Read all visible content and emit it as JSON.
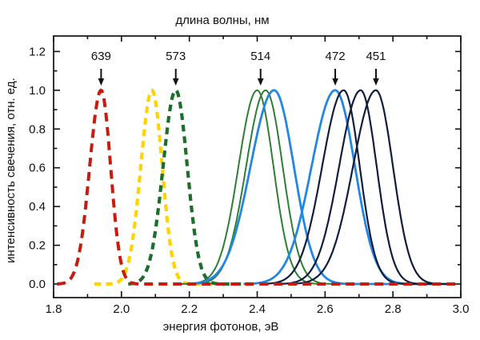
{
  "chart_data": {
    "type": "line",
    "title": "длина волны, нм",
    "top_axis_label": "длина волны, нм",
    "xlabel": "энергия фотонов, эВ",
    "ylabel": "интенсивность свечения, отн. ед.",
    "xlim": [
      1.8,
      3.0
    ],
    "ylim": [
      -0.07,
      1.28
    ],
    "grid": false,
    "legend": "none",
    "x_major_ticks": [
      1.8,
      2.0,
      2.2,
      2.4,
      2.6,
      2.8,
      3.0
    ],
    "x_tick_labels": [
      "1.8",
      "2.0",
      "2.2",
      "2.4",
      "2.6",
      "2.8",
      "3.0"
    ],
    "x_minor_ticks": [
      1.9,
      2.1,
      2.3,
      2.5,
      2.7,
      2.9
    ],
    "y_major_ticks": [
      0.0,
      0.2,
      0.4,
      0.6,
      0.8,
      1.0,
      1.2
    ],
    "y_tick_labels": [
      "0.0",
      "0.2",
      "0.4",
      "0.6",
      "0.8",
      "1.0",
      "1.2"
    ],
    "y_minor_ticks": [
      0.1,
      0.3,
      0.5,
      0.7,
      0.9,
      1.1
    ],
    "wavelength_annotations": [
      {
        "label": "639",
        "energy_eV": 1.94
      },
      {
        "label": "573",
        "energy_eV": 2.16
      },
      {
        "label": "514",
        "energy_eV": 2.41
      },
      {
        "label": "472",
        "energy_eV": 2.63
      },
      {
        "label": "451",
        "energy_eV": 2.75
      }
    ],
    "series": [
      {
        "name": "dashed-yellow",
        "style": "dashed",
        "color": "#ffd300",
        "line_width": 4.2,
        "dash": [
          8.5,
          6
        ],
        "peak_eV": 2.09,
        "amplitude": 1.0,
        "fwhm_eV": 0.071,
        "left_broadening": 1.1,
        "plot_range_eV": [
          1.92,
          2.28
        ]
      },
      {
        "name": "dashed-dark-green-573nm",
        "style": "dashed",
        "color": "#1d6e2c",
        "line_width": 4.2,
        "dash": [
          8.5,
          6
        ],
        "peak_eV": 2.16,
        "amplitude": 1.0,
        "fwhm_eV": 0.08,
        "left_broadening": 1.1,
        "plot_range_eV": [
          2.02,
          2.39
        ]
      },
      {
        "name": "solid-green-1",
        "style": "solid",
        "color": "#2f7f33",
        "line_width": 2.0,
        "peak_eV": 2.4,
        "amplitude": 1.0,
        "fwhm_eV": 0.113,
        "left_broadening": 1.15,
        "plot_range_eV": [
          2.17,
          2.58
        ]
      },
      {
        "name": "solid-green-2",
        "style": "solid",
        "color": "#2f7f33",
        "line_width": 2.0,
        "peak_eV": 2.425,
        "amplitude": 1.0,
        "fwhm_eV": 0.118,
        "left_broadening": 1.15,
        "plot_range_eV": [
          2.19,
          2.66
        ]
      },
      {
        "name": "solid-blue-1",
        "style": "solid",
        "color": "#2287e2",
        "line_width": 2.8,
        "peak_eV": 2.45,
        "amplitude": 1.0,
        "fwhm_eV": 0.137,
        "left_broadening": 1.2,
        "plot_range_eV": [
          2.2,
          2.79
        ]
      },
      {
        "name": "solid-blue-2-472nm",
        "style": "solid",
        "color": "#2287e2",
        "line_width": 2.8,
        "peak_eV": 2.63,
        "amplitude": 1.0,
        "fwhm_eV": 0.137,
        "left_broadening": 1.2,
        "plot_range_eV": [
          2.36,
          2.96
        ]
      },
      {
        "name": "solid-navy-1",
        "style": "solid",
        "color": "#101d3f",
        "line_width": 2.2,
        "peak_eV": 2.655,
        "amplitude": 1.0,
        "fwhm_eV": 0.111,
        "left_broadening": 1.35,
        "plot_range_eV": [
          2.43,
          2.88
        ]
      },
      {
        "name": "solid-navy-2",
        "style": "solid",
        "color": "#101d3f",
        "line_width": 2.2,
        "peak_eV": 2.705,
        "amplitude": 1.0,
        "fwhm_eV": 0.111,
        "left_broadening": 1.35,
        "plot_range_eV": [
          2.46,
          2.92
        ]
      },
      {
        "name": "solid-navy-3-451nm",
        "style": "solid",
        "color": "#101d3f",
        "line_width": 2.2,
        "peak_eV": 2.75,
        "amplitude": 1.0,
        "fwhm_eV": 0.118,
        "left_broadening": 1.35,
        "plot_range_eV": [
          2.49,
          2.97
        ]
      },
      {
        "name": "dashed-red-639nm",
        "style": "dashed",
        "color": "#c81a0e",
        "line_width": 4.0,
        "dash": [
          11,
          7
        ],
        "peak_eV": 1.94,
        "amplitude": 1.0,
        "fwhm_eV": 0.066,
        "left_broadening": 1.2,
        "plot_range_eV": [
          1.81,
          2.995
        ]
      }
    ],
    "annotation_color": "#111111",
    "frame_color": "#111111"
  }
}
